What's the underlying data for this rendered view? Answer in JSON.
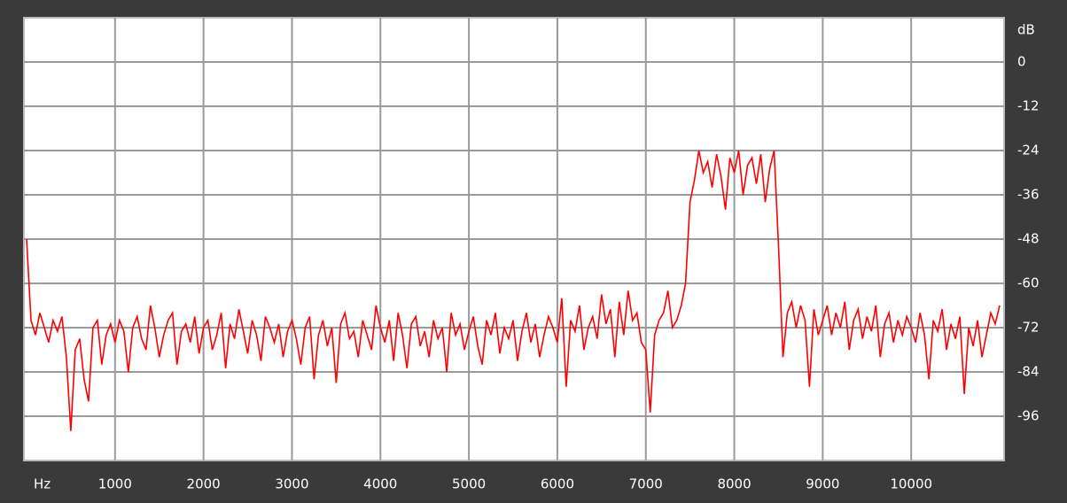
{
  "chart_data": {
    "type": "line",
    "x_label": "Hz",
    "y_label": "dB",
    "x": [
      0,
      50,
      100,
      150,
      200,
      250,
      300,
      350,
      400,
      450,
      500,
      550,
      600,
      650,
      700,
      750,
      800,
      850,
      900,
      950,
      1000,
      1050,
      1100,
      1150,
      1200,
      1250,
      1300,
      1350,
      1400,
      1450,
      1500,
      1550,
      1600,
      1650,
      1700,
      1750,
      1800,
      1850,
      1900,
      1950,
      2000,
      2050,
      2100,
      2150,
      2200,
      2250,
      2300,
      2350,
      2400,
      2450,
      2500,
      2550,
      2600,
      2650,
      2700,
      2750,
      2800,
      2850,
      2900,
      2950,
      3000,
      3050,
      3100,
      3150,
      3200,
      3250,
      3300,
      3350,
      3400,
      3450,
      3500,
      3550,
      3600,
      3650,
      3700,
      3750,
      3800,
      3850,
      3900,
      3950,
      4000,
      4050,
      4100,
      4150,
      4200,
      4250,
      4300,
      4350,
      4400,
      4450,
      4500,
      4550,
      4600,
      4650,
      4700,
      4750,
      4800,
      4850,
      4900,
      4950,
      5000,
      5050,
      5100,
      5150,
      5200,
      5250,
      5300,
      5350,
      5400,
      5450,
      5500,
      5550,
      5600,
      5650,
      5700,
      5750,
      5800,
      5850,
      5900,
      5950,
      6000,
      6050,
      6100,
      6150,
      6200,
      6250,
      6300,
      6350,
      6400,
      6450,
      6500,
      6550,
      6600,
      6650,
      6700,
      6750,
      6800,
      6850,
      6900,
      6950,
      7000,
      7050,
      7100,
      7150,
      7200,
      7250,
      7300,
      7350,
      7400,
      7450,
      7500,
      7550,
      7600,
      7650,
      7700,
      7750,
      7800,
      7850,
      7900,
      7950,
      8000,
      8050,
      8100,
      8150,
      8200,
      8250,
      8300,
      8350,
      8400,
      8450,
      8500,
      8550,
      8600,
      8650,
      8700,
      8750,
      8800,
      8850,
      8900,
      8950,
      9000,
      9050,
      9100,
      9150,
      9200,
      9250,
      9300,
      9350,
      9400,
      9450,
      9500,
      9550,
      9600,
      9650,
      9700,
      9750,
      9800,
      9850,
      9900,
      9950,
      10000,
      10050,
      10100,
      10150,
      10200,
      10250,
      10300,
      10350,
      10400,
      10450,
      10500,
      10550,
      10600,
      10650,
      10700,
      10750,
      10800,
      10850,
      10900,
      10950,
      11000
    ],
    "series": [
      {
        "color": "#ff0000",
        "values": [
          -48,
          -70,
          -74,
          -68,
          -72,
          -76,
          -70,
          -73,
          -69,
          -80,
          -100,
          -78,
          -75,
          -86,
          -92,
          -72,
          -70,
          -82,
          -74,
          -71,
          -76,
          -70,
          -73,
          -84,
          -72,
          -69,
          -75,
          -78,
          -66,
          -72,
          -80,
          -74,
          -70,
          -68,
          -82,
          -73,
          -71,
          -76,
          -69,
          -79,
          -72,
          -70,
          -78,
          -74,
          -68,
          -83,
          -71,
          -75,
          -67,
          -73,
          -79,
          -70,
          -74,
          -81,
          -69,
          -72,
          -76,
          -71,
          -80,
          -73,
          -70,
          -75,
          -82,
          -72,
          -69,
          -86,
          -74,
          -70,
          -77,
          -72,
          -87,
          -71,
          -68,
          -75,
          -73,
          -80,
          -70,
          -74,
          -78,
          -66,
          -72,
          -76,
          -70,
          -81,
          -68,
          -74,
          -83,
          -71,
          -69,
          -77,
          -73,
          -80,
          -70,
          -75,
          -72,
          -84,
          -68,
          -74,
          -71,
          -78,
          -73,
          -69,
          -77,
          -82,
          -70,
          -74,
          -68,
          -79,
          -72,
          -75,
          -70,
          -81,
          -73,
          -68,
          -76,
          -71,
          -80,
          -74,
          -69,
          -72,
          -76,
          -64,
          -88,
          -70,
          -73,
          -66,
          -78,
          -72,
          -69,
          -75,
          -63,
          -71,
          -67,
          -80,
          -65,
          -74,
          -62,
          -70,
          -68,
          -76,
          -78,
          -95,
          -74,
          -70,
          -68,
          -62,
          -72,
          -70,
          -66,
          -60,
          -38,
          -32,
          -24,
          -30,
          -27,
          -34,
          -25,
          -31,
          -40,
          -26,
          -30,
          -24,
          -36,
          -28,
          -26,
          -33,
          -25,
          -38,
          -29,
          -24,
          -50,
          -80,
          -68,
          -65,
          -72,
          -66,
          -70,
          -88,
          -67,
          -74,
          -70,
          -66,
          -74,
          -68,
          -72,
          -65,
          -78,
          -70,
          -67,
          -75,
          -69,
          -73,
          -66,
          -80,
          -71,
          -68,
          -76,
          -70,
          -74,
          -69,
          -72,
          -76,
          -68,
          -74,
          -86,
          -70,
          -73,
          -67,
          -78,
          -71,
          -75,
          -69,
          -90,
          -72,
          -77,
          -70,
          -80,
          -74,
          -68,
          -71,
          -66
        ]
      }
    ],
    "xlim": [
      -30,
      11050
    ],
    "ylim": [
      -108,
      12
    ],
    "xticks": [
      1000,
      2000,
      3000,
      4000,
      5000,
      6000,
      7000,
      8000,
      9000,
      10000
    ],
    "yticks": [
      0,
      -12,
      -24,
      -36,
      -48,
      -60,
      -72,
      -84,
      -96
    ],
    "grid": true
  }
}
